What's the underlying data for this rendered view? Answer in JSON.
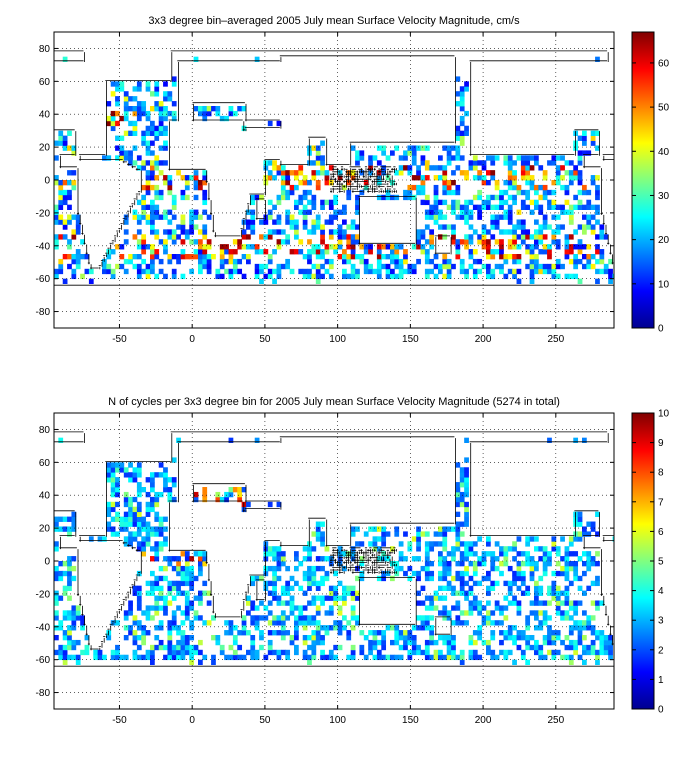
{
  "chart_data": [
    {
      "type": "heatmap",
      "title": "3x3 degree bin–averaged 2005 July mean Surface Velocity Magnitude, cm/s",
      "xlabel": "",
      "ylabel": "",
      "xlim": [
        -95,
        290
      ],
      "ylim": [
        -90,
        90
      ],
      "xticks": [
        -50,
        0,
        50,
        100,
        150,
        200,
        250
      ],
      "yticks": [
        80,
        60,
        40,
        20,
        0,
        -20,
        -40,
        -60,
        -80
      ],
      "grid": true,
      "bin_size_deg": 3,
      "colorbar": {
        "min": 0,
        "max": 67,
        "ticks": [
          0,
          10,
          20,
          30,
          40,
          50,
          60
        ],
        "colormap": "jet"
      },
      "bins_description": "scattered 3x3 degree colored ocean bins; values mostly 10-30 cm/s with high values (40-67) in equatorial Atlantic/Indian/Pacific, Gulf Stream, Kuroshio, Agulhas and Antarctic Circumpolar regions"
    },
    {
      "type": "heatmap",
      "title": "N of cycles per 3x3 degree bin for 2005 July mean Surface Velocity Magnitude (5274 in total)",
      "xlabel": "",
      "ylabel": "",
      "xlim": [
        -95,
        290
      ],
      "ylim": [
        -90,
        90
      ],
      "xticks": [
        -50,
        0,
        50,
        100,
        150,
        200,
        250
      ],
      "yticks": [
        80,
        60,
        40,
        20,
        0,
        -20,
        -40,
        -60,
        -80
      ],
      "grid": true,
      "bin_size_deg": 3,
      "colorbar": {
        "min": 0,
        "max": 10,
        "ticks": [
          0,
          1,
          2,
          3,
          4,
          5,
          6,
          7,
          8,
          9,
          10
        ],
        "colormap": "jet"
      },
      "bins_description": "scattered 3x3 degree colored ocean bins; counts mostly 2-4 cycles with higher counts (6-10) in equatorial Atlantic, Mediterranean and Kuroshio regions"
    }
  ]
}
